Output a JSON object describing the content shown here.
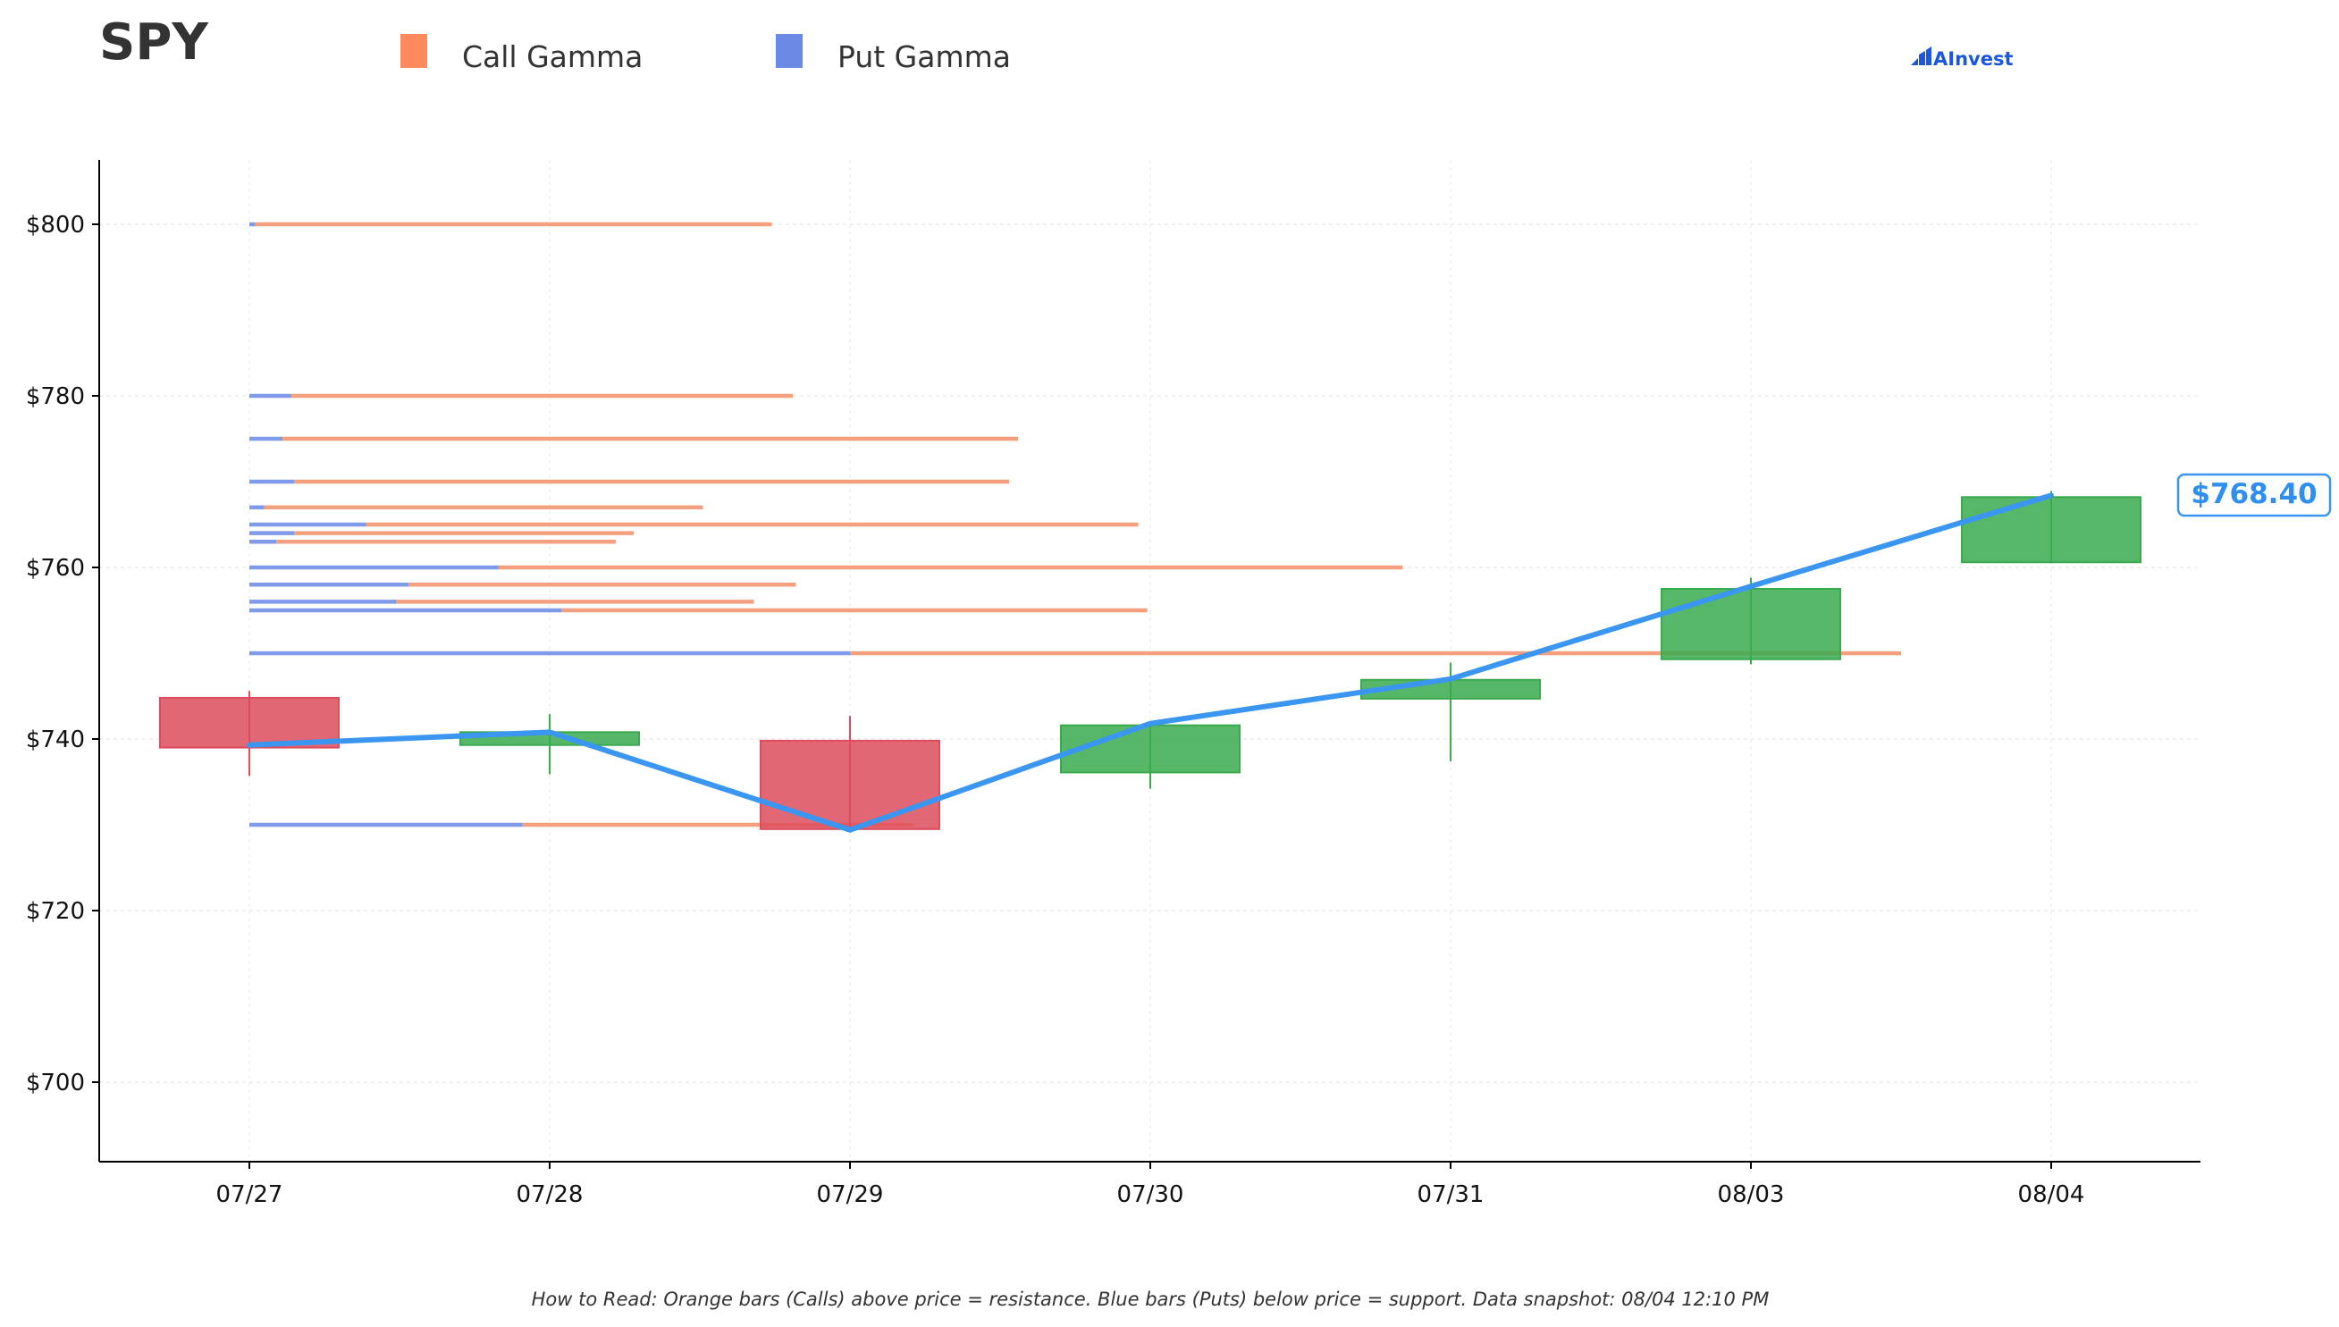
{
  "header": {
    "ticker": "SPY",
    "brand": "AInvest"
  },
  "legend": [
    {
      "label": "Call Gamma",
      "color": "#ff8a5c"
    },
    {
      "label": "Put Gamma",
      "color": "#6a8ae6"
    }
  ],
  "colors": {
    "call": "#f4a07f",
    "put": "#7f9ae8",
    "up_candle": "#3aaa4f",
    "down_candle": "#dd4c5c",
    "price_line": "#3a96f0",
    "brand": "#1a56e0"
  },
  "chart_data": {
    "type": "candlestick",
    "title": "SPY",
    "categories": [
      "07/27",
      "07/28",
      "07/29",
      "07/30",
      "07/31",
      "08/03",
      "08/04"
    ],
    "ylim": [
      691,
      808
    ],
    "y_ticks": [
      700,
      720,
      740,
      760,
      780,
      800
    ],
    "y_tick_labels": [
      "$700",
      "$720",
      "$740",
      "$760",
      "$780",
      "$800"
    ],
    "grid": true,
    "legend_position": "top-left",
    "candles": [
      {
        "date": "07/27",
        "open": 744.8,
        "high": 745.6,
        "low": 735.7,
        "close": 739.0
      },
      {
        "date": "07/28",
        "open": 739.3,
        "high": 742.9,
        "low": 735.9,
        "close": 740.8
      },
      {
        "date": "07/29",
        "open": 739.8,
        "high": 742.7,
        "low": 729.1,
        "close": 729.5
      },
      {
        "date": "07/30",
        "open": 736.1,
        "high": 741.9,
        "low": 734.2,
        "close": 741.6
      },
      {
        "date": "07/31",
        "open": 744.7,
        "high": 748.9,
        "low": 737.4,
        "close": 746.9
      },
      {
        "date": "08/03",
        "open": 749.3,
        "high": 758.8,
        "low": 748.7,
        "close": 757.5
      },
      {
        "date": "08/04",
        "open": 760.6,
        "high": 768.9,
        "low": 760.5,
        "close": 768.2
      }
    ],
    "price_line": [
      739.3,
      740.8,
      729.4,
      741.8,
      747.0,
      757.8,
      768.4
    ],
    "last_price_label": "$768.40",
    "gamma_levels": [
      {
        "strike": 800,
        "put": 0.02,
        "call": 1.72
      },
      {
        "strike": 780,
        "put": 0.14,
        "call": 1.67
      },
      {
        "strike": 775,
        "put": 0.11,
        "call": 2.45
      },
      {
        "strike": 770,
        "put": 0.15,
        "call": 2.38
      },
      {
        "strike": 767,
        "put": 0.05,
        "call": 1.46
      },
      {
        "strike": 765,
        "put": 0.39,
        "call": 2.57
      },
      {
        "strike": 764,
        "put": 0.15,
        "call": 1.13
      },
      {
        "strike": 763,
        "put": 0.09,
        "call": 1.13
      },
      {
        "strike": 760,
        "put": 0.83,
        "call": 3.01
      },
      {
        "strike": 758,
        "put": 0.53,
        "call": 1.29
      },
      {
        "strike": 756,
        "put": 0.49,
        "call": 1.19
      },
      {
        "strike": 755,
        "put": 1.04,
        "call": 1.95
      },
      {
        "strike": 750,
        "put": 2.0,
        "call": 3.5
      },
      {
        "strike": 730,
        "put": 0.91,
        "call": 1.3
      }
    ]
  },
  "footer": {
    "note": "How to Read: Orange bars (Calls) above price = resistance. Blue bars (Puts) below price = support. Data snapshot: 08/04 12:10 PM"
  }
}
